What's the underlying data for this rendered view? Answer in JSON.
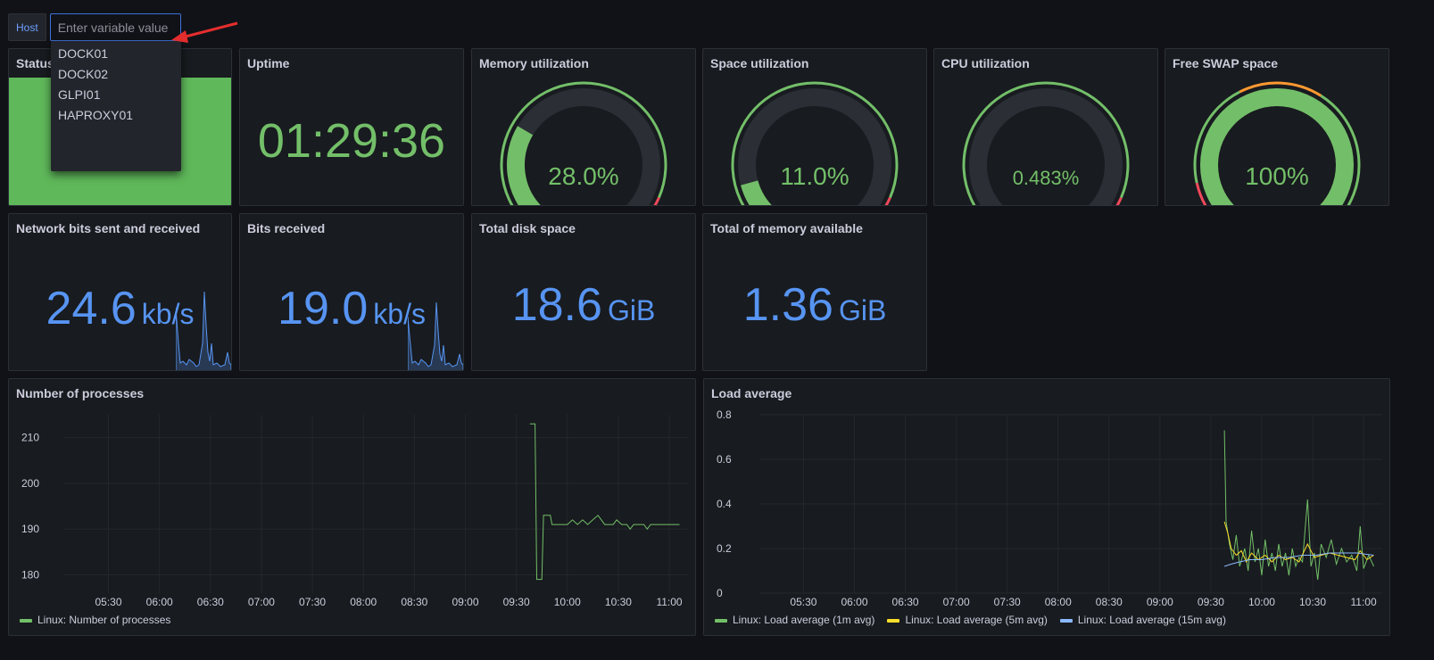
{
  "variable": {
    "label": "Host",
    "placeholder": "Enter variable value",
    "value": ""
  },
  "dropdown": {
    "options": [
      "DOCK01",
      "DOCK02",
      "GLPI01",
      "HAPROXY01"
    ]
  },
  "colors": {
    "green": "#73bf69",
    "blue": "#5794f2",
    "yellow": "#fade2a",
    "red": "#f2495c",
    "orange": "#ff9830"
  },
  "panels": {
    "status": {
      "title": "Status"
    },
    "uptime": {
      "title": "Uptime",
      "value": "01:29:36"
    },
    "memory": {
      "title": "Memory utilization",
      "value": "28.0%",
      "fraction": 0.28
    },
    "space": {
      "title": "Space utilization",
      "value": "11.0%",
      "fraction": 0.11
    },
    "cpu": {
      "title": "CPU utilization",
      "value": "0.483%",
      "fraction": 0.00483
    },
    "swap": {
      "title": "Free SWAP space",
      "value": "100%",
      "fraction": 1.0
    },
    "network": {
      "title": "Network bits sent and received",
      "value": "24.6",
      "unit": "kb/s"
    },
    "bits_received": {
      "title": "Bits received",
      "value": "19.0",
      "unit": "kb/s"
    },
    "disk": {
      "title": "Total disk space",
      "value": "18.6",
      "unit": "GiB"
    },
    "memory_available": {
      "title": "Total of memory available",
      "value": "1.36",
      "unit": "GiB"
    },
    "processes": {
      "title": "Number of processes",
      "legend": [
        "Linux: Number of processes"
      ]
    },
    "load": {
      "title": "Load average",
      "legend": [
        "Linux: Load average (1m avg)",
        "Linux: Load average (5m avg)",
        "Linux: Load average (15m avg)"
      ]
    }
  },
  "chart_data": [
    {
      "type": "line",
      "title": "Number of processes",
      "x_ticks": [
        "05:30",
        "06:00",
        "06:30",
        "07:00",
        "07:30",
        "08:00",
        "08:30",
        "09:00",
        "09:30",
        "10:00",
        "10:30",
        "11:00"
      ],
      "y_ticks": [
        180,
        190,
        200,
        210
      ],
      "ylim": [
        176,
        215
      ],
      "series": [
        {
          "name": "Linux: Number of processes",
          "color": "#73bf69",
          "points": [
            [
              "09:38",
              213
            ],
            [
              "09:41",
              213
            ],
            [
              "09:42",
              179
            ],
            [
              "09:45",
              179
            ],
            [
              "09:46",
              193
            ],
            [
              "09:50",
              193
            ],
            [
              "09:51",
              191
            ],
            [
              "10:00",
              191
            ],
            [
              "10:03",
              192
            ],
            [
              "10:06",
              191
            ],
            [
              "10:09",
              192
            ],
            [
              "10:12",
              191
            ],
            [
              "10:15",
              192
            ],
            [
              "10:18",
              193
            ],
            [
              "10:20",
              192
            ],
            [
              "10:22",
              191
            ],
            [
              "10:27",
              191
            ],
            [
              "10:29",
              192
            ],
            [
              "10:32",
              191
            ],
            [
              "10:35",
              191
            ],
            [
              "10:37",
              190
            ],
            [
              "10:39",
              191
            ],
            [
              "10:45",
              191
            ],
            [
              "10:47",
              190
            ],
            [
              "10:49",
              191
            ],
            [
              "11:06",
              191
            ]
          ]
        }
      ]
    },
    {
      "type": "line",
      "title": "Load average",
      "x_ticks": [
        "05:30",
        "06:00",
        "06:30",
        "07:00",
        "07:30",
        "08:00",
        "08:30",
        "09:00",
        "09:30",
        "10:00",
        "10:30",
        "11:00"
      ],
      "y_ticks": [
        0,
        0.2,
        0.4,
        0.6,
        0.8
      ],
      "ylim": [
        0,
        0.8
      ],
      "series": [
        {
          "name": "Linux: Load average (1m avg)",
          "color": "#73bf69",
          "points": [
            [
              "09:38",
              0.73
            ],
            [
              "09:39",
              0.32
            ],
            [
              "09:41",
              0.22
            ],
            [
              "09:43",
              0.15
            ],
            [
              "09:45",
              0.26
            ],
            [
              "09:47",
              0.12
            ],
            [
              "09:50",
              0.2
            ],
            [
              "09:52",
              0.1
            ],
            [
              "09:54",
              0.28
            ],
            [
              "09:56",
              0.14
            ],
            [
              "09:58",
              0.2
            ],
            [
              "10:00",
              0.08
            ],
            [
              "10:02",
              0.24
            ],
            [
              "10:04",
              0.12
            ],
            [
              "10:06",
              0.18
            ],
            [
              "10:08",
              0.1
            ],
            [
              "10:10",
              0.22
            ],
            [
              "10:12",
              0.12
            ],
            [
              "10:14",
              0.18
            ],
            [
              "10:16",
              0.08
            ],
            [
              "10:18",
              0.2
            ],
            [
              "10:20",
              0.12
            ],
            [
              "10:22",
              0.16
            ],
            [
              "10:24",
              0.14
            ],
            [
              "10:27",
              0.42
            ],
            [
              "10:29",
              0.12
            ],
            [
              "10:31",
              0.18
            ],
            [
              "10:33",
              0.06
            ],
            [
              "10:35",
              0.22
            ],
            [
              "10:38",
              0.16
            ],
            [
              "10:41",
              0.24
            ],
            [
              "10:44",
              0.13
            ],
            [
              "10:47",
              0.2
            ],
            [
              "10:50",
              0.14
            ],
            [
              "10:53",
              0.17
            ],
            [
              "10:56",
              0.1
            ],
            [
              "10:58",
              0.3
            ],
            [
              "11:00",
              0.11
            ],
            [
              "11:03",
              0.17
            ],
            [
              "11:06",
              0.12
            ]
          ]
        },
        {
          "name": "Linux: Load average (5m avg)",
          "color": "#fade2a",
          "points": [
            [
              "09:38",
              0.32
            ],
            [
              "09:40",
              0.27
            ],
            [
              "09:42",
              0.2
            ],
            [
              "09:45",
              0.17
            ],
            [
              "09:48",
              0.19
            ],
            [
              "09:51",
              0.14
            ],
            [
              "09:54",
              0.18
            ],
            [
              "09:58",
              0.15
            ],
            [
              "10:02",
              0.17
            ],
            [
              "10:06",
              0.14
            ],
            [
              "10:10",
              0.17
            ],
            [
              "10:14",
              0.15
            ],
            [
              "10:18",
              0.16
            ],
            [
              "10:22",
              0.14
            ],
            [
              "10:27",
              0.22
            ],
            [
              "10:31",
              0.16
            ],
            [
              "10:35",
              0.17
            ],
            [
              "10:40",
              0.18
            ],
            [
              "10:45",
              0.17
            ],
            [
              "10:50",
              0.16
            ],
            [
              "10:55",
              0.15
            ],
            [
              "10:58",
              0.19
            ],
            [
              "11:02",
              0.15
            ],
            [
              "11:06",
              0.17
            ]
          ]
        },
        {
          "name": "Linux: Load average (15m avg)",
          "color": "#8ab8ff",
          "points": [
            [
              "09:38",
              0.12
            ],
            [
              "09:42",
              0.13
            ],
            [
              "09:47",
              0.14
            ],
            [
              "09:53",
              0.15
            ],
            [
              "10:00",
              0.15
            ],
            [
              "10:08",
              0.16
            ],
            [
              "10:16",
              0.16
            ],
            [
              "10:24",
              0.17
            ],
            [
              "10:32",
              0.17
            ],
            [
              "10:40",
              0.18
            ],
            [
              "10:48",
              0.18
            ],
            [
              "10:56",
              0.18
            ],
            [
              "11:06",
              0.17
            ]
          ]
        }
      ]
    }
  ]
}
